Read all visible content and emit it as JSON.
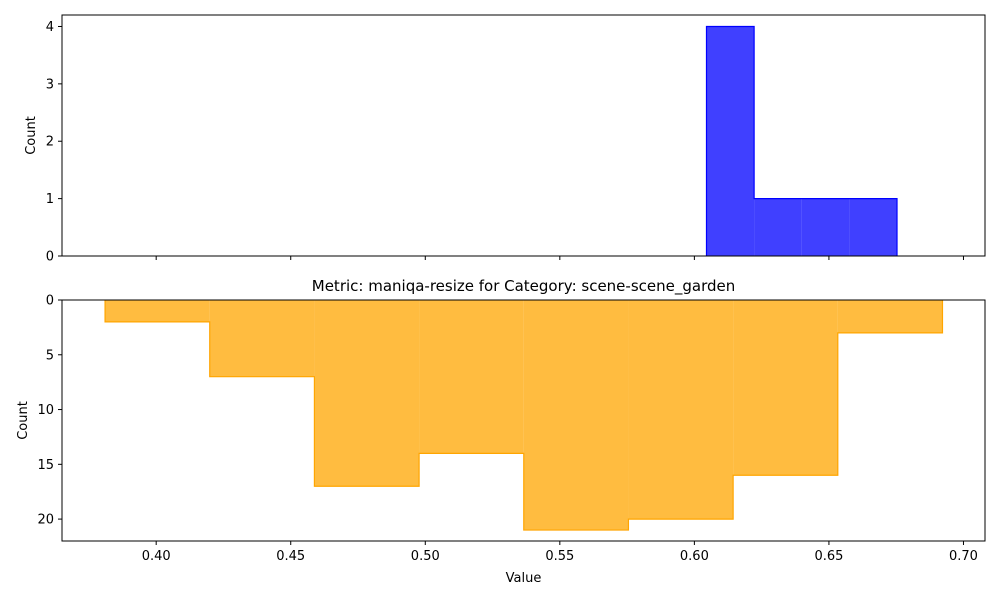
{
  "chart_data": [
    {
      "type": "histogram",
      "title": "",
      "xlabel": "",
      "ylabel": "Count",
      "xlim": [
        0.365,
        0.708
      ],
      "ylim": [
        0,
        4.2
      ],
      "yticks": [
        0,
        1,
        2,
        3,
        4
      ],
      "xticks": [
        0.4,
        0.45,
        0.5,
        0.55,
        0.6,
        0.65,
        0.7
      ],
      "x_tick_labels_visible": false,
      "color": "#0000ff",
      "bins": [
        {
          "x0": 0.6045,
          "x1": 0.6222,
          "count": 4
        },
        {
          "x0": 0.6222,
          "x1": 0.6399,
          "count": 1
        },
        {
          "x0": 0.6399,
          "x1": 0.6576,
          "count": 1
        },
        {
          "x0": 0.6576,
          "x1": 0.6753,
          "count": 1
        }
      ]
    },
    {
      "type": "histogram",
      "title": "Metric: maniqa-resize for Category: scene-scene_garden",
      "xlabel": "Value",
      "ylabel": "Count",
      "xlim": [
        0.365,
        0.708
      ],
      "ylim": [
        0,
        22
      ],
      "y_inverted": true,
      "yticks": [
        0,
        5,
        10,
        15,
        20
      ],
      "xticks": [
        0.4,
        0.45,
        0.5,
        0.55,
        0.6,
        0.65,
        0.7
      ],
      "x_tick_labels": [
        "0.40",
        "0.45",
        "0.50",
        "0.55",
        "0.60",
        "0.65",
        "0.70"
      ],
      "color": "#ffa500",
      "bins": [
        {
          "x0": 0.381,
          "x1": 0.4199,
          "count": 2
        },
        {
          "x0": 0.4199,
          "x1": 0.4588,
          "count": 7
        },
        {
          "x0": 0.4588,
          "x1": 0.4977,
          "count": 17
        },
        {
          "x0": 0.4977,
          "x1": 0.5366,
          "count": 14
        },
        {
          "x0": 0.5366,
          "x1": 0.5755,
          "count": 21
        },
        {
          "x0": 0.5755,
          "x1": 0.6144,
          "count": 20
        },
        {
          "x0": 0.6144,
          "x1": 0.6533,
          "count": 16
        },
        {
          "x0": 0.6533,
          "x1": 0.6922,
          "count": 3
        }
      ]
    }
  ]
}
